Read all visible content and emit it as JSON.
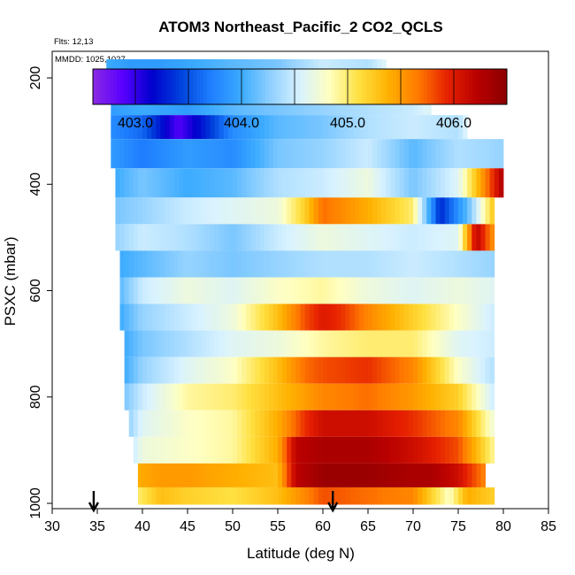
{
  "chart_data": {
    "type": "heatmap",
    "title": "ATOM3 Northeast_Pacific_2 CO2_QCLS",
    "flights_label": "Flts: 12,13",
    "date_label": "MMDD: 1025,1027",
    "xlabel": "Latitude (deg N)",
    "ylabel": "PSXC (mbar)",
    "xlim": [
      30,
      85
    ],
    "ylim": [
      1010,
      150
    ],
    "x_ticks": [
      30,
      35,
      40,
      45,
      50,
      55,
      60,
      65,
      70,
      75,
      80,
      85
    ],
    "y_ticks": [
      200,
      400,
      600,
      800,
      1000
    ],
    "colorbar": {
      "range": [
        402.6,
        406.5
      ],
      "tick_values": [
        403.0,
        404.0,
        405.0,
        406.0
      ],
      "tick_labels": [
        "403.0",
        "404.0",
        "405.0",
        "406.0"
      ],
      "colors": [
        "#8a2be2",
        "#5a00ff",
        "#0000cc",
        "#0044dd",
        "#1f7fff",
        "#3aaaff",
        "#8fd0ff",
        "#d8f2ff",
        "#ffffc0",
        "#ffe040",
        "#ffb000",
        "#ff7a00",
        "#e62000",
        "#b80000",
        "#8b0000"
      ]
    },
    "markers": [
      {
        "lat": 34.6,
        "label": "arrow"
      },
      {
        "lat": 61.1,
        "label": "arrow"
      }
    ],
    "layers": [
      {
        "p": 200,
        "lat": [
          36,
          38.5,
          42,
          46,
          50,
          55,
          60,
          65,
          67
        ],
        "co2": [
          404.0,
          403.9,
          403.9,
          404.0,
          404.1,
          404.2,
          404.5,
          404.4,
          404.6
        ]
      },
      {
        "p": 250,
        "lat": [
          36.5,
          40,
          45,
          50,
          55,
          60,
          65,
          70,
          72
        ],
        "co2": [
          403.9,
          404.0,
          403.9,
          404.1,
          404.2,
          404.3,
          404.4,
          404.5,
          404.6
        ]
      },
      {
        "p": 290,
        "lat": [
          36.5,
          40,
          44,
          47,
          50,
          55,
          60,
          65,
          70,
          75,
          76
        ],
        "co2": [
          403.8,
          403.6,
          402.9,
          403.3,
          403.8,
          404.1,
          404.2,
          404.4,
          404.5,
          404.4,
          404.6
        ]
      },
      {
        "p": 340,
        "lat": [
          36.5,
          40,
          45,
          50,
          55,
          60,
          65,
          70,
          75,
          80
        ],
        "co2": [
          403.9,
          403.7,
          403.9,
          403.8,
          404.2,
          404.3,
          404.5,
          404.1,
          404.4,
          404.3
        ]
      },
      {
        "p": 400,
        "lat": [
          37,
          40,
          45,
          50,
          55,
          60,
          65,
          70,
          75,
          80
        ],
        "co2": [
          404.0,
          404.2,
          404.0,
          404.1,
          404.4,
          404.5,
          404.7,
          404.2,
          404.6,
          406.3
        ]
      },
      {
        "p": 450,
        "lat": [
          37,
          40,
          45,
          50,
          55,
          58,
          60,
          65,
          70,
          73,
          76,
          79
        ],
        "co2": [
          404.2,
          404.3,
          404.5,
          404.6,
          404.7,
          405.2,
          405.7,
          405.4,
          405.0,
          403.3,
          404.1,
          405.3
        ]
      },
      {
        "p": 500,
        "lat": [
          37,
          40,
          45,
          50,
          55,
          60,
          65,
          70,
          75,
          77,
          79
        ],
        "co2": [
          404.3,
          404.5,
          404.4,
          404.2,
          404.5,
          404.7,
          404.6,
          404.5,
          404.6,
          406.2,
          405.5
        ]
      },
      {
        "p": 550,
        "lat": [
          37.5,
          40,
          45,
          50,
          55,
          60,
          65,
          70,
          75,
          79
        ],
        "co2": [
          404.0,
          404.1,
          404.3,
          404.2,
          404.3,
          404.4,
          404.4,
          404.5,
          404.4,
          404.3
        ]
      },
      {
        "p": 600,
        "lat": [
          37.5,
          40,
          45,
          50,
          55,
          60,
          65,
          70,
          75,
          79
        ],
        "co2": [
          404.1,
          404.5,
          404.7,
          404.6,
          404.8,
          404.9,
          404.7,
          404.6,
          404.7,
          404.6
        ]
      },
      {
        "p": 650,
        "lat": [
          37.5,
          40,
          45,
          50,
          55,
          58,
          60,
          62,
          65,
          70,
          75,
          79
        ],
        "co2": [
          404.0,
          404.3,
          404.5,
          404.7,
          405.3,
          405.8,
          406.0,
          405.9,
          405.6,
          405.2,
          404.8,
          404.5
        ]
      },
      {
        "p": 700,
        "lat": [
          38,
          40,
          45,
          50,
          55,
          60,
          65,
          70,
          75,
          79
        ],
        "co2": [
          404.0,
          404.2,
          404.4,
          404.6,
          404.7,
          404.9,
          405.0,
          405.0,
          404.6,
          404.5
        ]
      },
      {
        "p": 750,
        "lat": [
          38,
          40,
          45,
          50,
          55,
          58,
          60,
          65,
          70,
          75,
          79
        ],
        "co2": [
          404.0,
          404.3,
          404.6,
          404.8,
          405.3,
          405.7,
          405.8,
          405.9,
          405.6,
          404.8,
          404.4
        ]
      },
      {
        "p": 800,
        "lat": [
          38,
          40,
          45,
          50,
          55,
          60,
          65,
          70,
          75,
          79
        ],
        "co2": [
          404.2,
          404.5,
          404.9,
          405.0,
          405.3,
          405.6,
          405.7,
          405.5,
          405.2,
          404.5
        ]
      },
      {
        "p": 850,
        "lat": [
          38.5,
          40,
          45,
          50,
          55,
          58,
          60,
          65,
          70,
          75,
          79
        ],
        "co2": [
          404.3,
          404.6,
          404.8,
          404.9,
          405.4,
          405.9,
          406.1,
          406.1,
          405.9,
          405.6,
          404.7
        ]
      },
      {
        "p": 900,
        "lat": [
          39,
          40,
          45,
          50,
          55,
          57,
          60,
          65,
          70,
          75,
          79
        ],
        "co2": [
          404.5,
          404.7,
          404.8,
          404.9,
          405.4,
          406.2,
          406.3,
          406.3,
          406.1,
          405.8,
          404.9
        ]
      },
      {
        "p": 950,
        "lat": [
          39.5,
          42,
          45,
          50,
          55,
          57,
          60,
          65,
          70,
          72,
          75,
          78
        ],
        "co2": [
          405.4,
          405.5,
          405.5,
          405.4,
          405.3,
          406.2,
          406.4,
          406.4,
          406.3,
          406.3,
          406.1,
          405.6
        ]
      },
      {
        "p": 990,
        "lat": [
          39.5,
          42,
          45,
          50,
          55,
          58,
          60,
          65,
          70,
          74,
          76,
          79
        ],
        "co2": [
          405.0,
          405.3,
          405.2,
          405.1,
          405.3,
          405.6,
          405.8,
          405.7,
          405.6,
          404.8,
          405.4,
          405.2
        ]
      }
    ]
  }
}
